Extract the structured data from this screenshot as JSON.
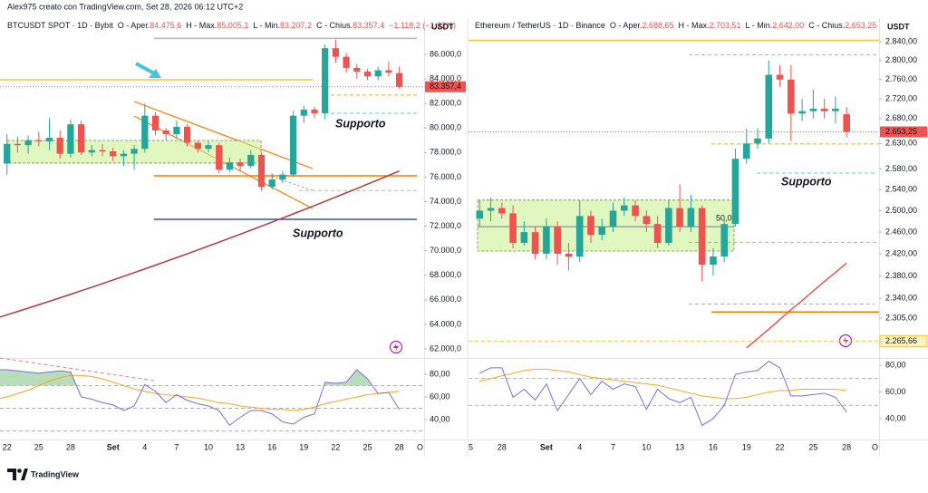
{
  "header": "Alex975 creato con TradingView.com, Set 28, 2026 06:12 UTC+2",
  "footer": "TradingView",
  "chart_data": [
    {
      "type": "candlestick",
      "title": "BTCUSDT SPOT · 1D · Bybit",
      "legend_items": [
        {
          "prefix": "O - Aper.",
          "value": "84.475,6"
        },
        {
          "prefix": "H - Max.",
          "value": "85.005,1"
        },
        {
          "prefix": "L - Min.",
          "value": "83.207,2"
        },
        {
          "prefix": "C - Chius.",
          "value": "83.357,4"
        }
      ],
      "change_label": "−1.118,2 (−1,32%)",
      "axis_unit": "USDT",
      "up_color": "#26a69a",
      "down_color": "#ef5350",
      "log": false,
      "categories": [
        null,
        "22",
        null,
        null,
        "25",
        null,
        null,
        "28",
        null,
        null,
        null,
        "Set",
        null,
        null,
        "4",
        null,
        null,
        "7",
        null,
        null,
        "10",
        null,
        null,
        "13",
        null,
        null,
        "16",
        null,
        null,
        "19",
        null,
        null,
        "22",
        null,
        null,
        "25",
        null,
        null,
        "28",
        null,
        null,
        "O"
      ],
      "open": [
        78300,
        77100,
        78700,
        78600,
        79000,
        78900,
        79200,
        77900,
        80300,
        78000,
        78200,
        78100,
        77700,
        77900,
        78300,
        81000,
        79800,
        79500,
        80100,
        78800,
        78300,
        78600,
        76600,
        77200,
        76900,
        77800,
        75200,
        75800,
        76200,
        81000,
        81500,
        81200,
        86500,
        85800,
        84900,
        84600,
        84200,
        84700,
        84475.6,
        null,
        null,
        null
      ],
      "high": [
        78900,
        79500,
        79300,
        79400,
        79700,
        80800,
        79800,
        80700,
        80600,
        78600,
        78700,
        78400,
        78200,
        78600,
        82000,
        81300,
        80000,
        80600,
        80300,
        79000,
        78900,
        78800,
        77600,
        77500,
        78200,
        78000,
        76300,
        76500,
        81400,
        81800,
        81700,
        86800,
        87200,
        86100,
        85200,
        84800,
        85000,
        85400,
        85005.1,
        null,
        null,
        null
      ],
      "low": [
        76800,
        76200,
        78000,
        77900,
        78500,
        78200,
        77500,
        77600,
        77800,
        77700,
        77700,
        77300,
        76900,
        76600,
        78000,
        79400,
        79000,
        79200,
        78500,
        78000,
        78000,
        76300,
        76400,
        76500,
        76700,
        74900,
        75000,
        75500,
        76000,
        80400,
        80800,
        80700,
        85300,
        84500,
        84000,
        83900,
        83900,
        84200,
        83207.2,
        null,
        null,
        null
      ],
      "close": [
        77100,
        78700,
        78600,
        79000,
        78900,
        79200,
        77900,
        80300,
        78000,
        78200,
        78100,
        77700,
        77900,
        78300,
        81000,
        79800,
        79500,
        80100,
        78800,
        78300,
        78600,
        76600,
        77200,
        76900,
        77800,
        75200,
        75800,
        76200,
        81000,
        81500,
        81200,
        86500,
        85800,
        84900,
        84600,
        84200,
        84700,
        84500,
        83357.4,
        null,
        null,
        null
      ],
      "last_price_label": "83.357,4",
      "ylim": [
        61260,
        88950
      ],
      "yticks": [
        {
          "value": 86000,
          "label": "86.000,0"
        },
        {
          "value": 84000,
          "label": "84.000,0"
        },
        {
          "value": 82000,
          "label": "82.000,0"
        },
        {
          "value": 80000,
          "label": "80.000,0"
        },
        {
          "value": 78000,
          "label": "78.000,0"
        },
        {
          "value": 76000,
          "label": "76.000,0"
        },
        {
          "value": 74000,
          "label": "74.000,0"
        },
        {
          "value": 72000,
          "label": "72.000,0"
        },
        {
          "value": 70000,
          "label": "70.000,0"
        },
        {
          "value": 68000,
          "label": "68.000,0"
        },
        {
          "value": 66000,
          "label": "66.000,0"
        },
        {
          "value": 64000,
          "label": "64.000,0"
        },
        {
          "value": 62000,
          "label": "62.000,0"
        }
      ],
      "moving_average": {
        "color": "#b23b3b",
        "values": [
          64500,
          64771,
          65045,
          65321,
          65599,
          65880,
          66163,
          66449,
          66737,
          67027,
          67320,
          67615,
          67913,
          68213,
          68515,
          68820,
          69127,
          69437,
          69749,
          70063,
          70380,
          70699,
          71021,
          71345,
          71671,
          72000,
          72331,
          72665,
          73001,
          73339,
          73680,
          74023,
          74369,
          74717,
          75067,
          75420,
          75775,
          76133,
          76493,
          null,
          null,
          null
        ]
      },
      "levels": [
        {
          "value": 83930,
          "color": "#f5c542",
          "dashed": false
        },
        {
          "value": 87300,
          "color": "#b2b5be",
          "dashed": false
        },
        {
          "value": 82680,
          "color": "#f5a623",
          "dashed": true
        },
        {
          "value": 81200,
          "color": "#4dd0e1",
          "dashed": true
        },
        {
          "value": 76100,
          "color": "#f57c00",
          "dashed": false
        },
        {
          "value": 74900,
          "color": "#b2b5be",
          "dashed": true
        },
        {
          "value": 72560,
          "color": "#3f51b5",
          "dashed": false
        }
      ],
      "box": {
        "low": 77140,
        "high": 78980,
        "color": "#c6f08c"
      },
      "annotations": [
        {
          "text": "Supporto",
          "color": "#4dc3d6"
        },
        {
          "text": "Supporto",
          "color": "#2f49b8"
        }
      ],
      "rsi": {
        "ylim": [
          22.4,
          94.4
        ],
        "yticks": [
          {
            "value": 80,
            "label": "80,00"
          },
          {
            "value": 60,
            "label": "60,00"
          },
          {
            "value": 40,
            "label": "40,00"
          }
        ],
        "levels": [
          70,
          50,
          30
        ],
        "fill_color": "#a5d6a7",
        "series": [
          {
            "color": "#7e6bd6",
            "values": [
              84,
              84,
              83,
              82,
              81,
              82,
              83,
              82,
              60,
              58,
              55,
              53,
              48,
              52,
              71,
              65,
              55,
              62,
              57,
              54,
              52,
              48,
              35,
              42,
              48,
              48,
              45,
              38,
              36,
              42,
              45,
              73,
              72,
              73,
              84,
              76,
              63,
              64,
              49,
              null,
              null,
              null
            ]
          },
          {
            "color": "#f5a623",
            "values": [
              58,
              60,
              63,
              66,
              70,
              74,
              77,
              79,
              79,
              78,
              76,
              73,
              70,
              67,
              65,
              63,
              62,
              61,
              60,
              59,
              57,
              55,
              54,
              52,
              51,
              50,
              49,
              49,
              48,
              49,
              51,
              54,
              56,
              58,
              60,
              62,
              63,
              64,
              65,
              null,
              null,
              null
            ]
          }
        ]
      }
    },
    {
      "type": "candlestick",
      "title": "Ethereum / TetherUS · 1D · Binance",
      "legend_items": [
        {
          "prefix": "O - Aper.",
          "value": "2.688,65"
        },
        {
          "prefix": "H - Max.",
          "value": "2.703,51"
        },
        {
          "prefix": "L - Min.",
          "value": "2.642,00"
        },
        {
          "prefix": "C - Chius.",
          "value": "2.653,25"
        }
      ],
      "axis_unit": "USDT",
      "up_color": "#26a69a",
      "down_color": "#ef5350",
      "log": true,
      "categories": [
        "25",
        null,
        null,
        "28",
        null,
        null,
        null,
        "Set",
        null,
        null,
        "4",
        null,
        null,
        "7",
        null,
        null,
        "10",
        null,
        null,
        "13",
        null,
        null,
        "16",
        null,
        null,
        "19",
        null,
        null,
        "22",
        null,
        null,
        "25",
        null,
        null,
        "28",
        null,
        null,
        "O"
      ],
      "open": [
        null,
        2485,
        2500,
        2505,
        2495,
        2440,
        2460,
        2420,
        2470,
        2420,
        2415,
        2490,
        2455,
        2470,
        2500,
        2510,
        2490,
        2475,
        2440,
        2505,
        2470,
        2505,
        2400,
        2415,
        2475,
        2600,
        2630,
        2640,
        2770,
        2760,
        2690,
        2695,
        2700,
        2695,
        2688.65,
        null,
        null,
        null
      ],
      "high": [
        null,
        2520,
        2525,
        2515,
        2510,
        2480,
        2470,
        2485,
        2480,
        2440,
        2520,
        2500,
        2485,
        2515,
        2525,
        2520,
        2500,
        2490,
        2520,
        2550,
        2530,
        2510,
        2430,
        2490,
        2620,
        2660,
        2660,
        2800,
        2790,
        2790,
        2720,
        2740,
        2720,
        2725,
        2703.51,
        null,
        null,
        null
      ],
      "low": [
        null,
        2470,
        2480,
        2485,
        2430,
        2435,
        2410,
        2410,
        2400,
        2390,
        2405,
        2440,
        2445,
        2460,
        2490,
        2480,
        2460,
        2430,
        2435,
        2460,
        2460,
        2370,
        2380,
        2405,
        2470,
        2590,
        2620,
        2630,
        2745,
        2635,
        2675,
        2680,
        2680,
        2670,
        2642,
        null,
        null,
        null
      ],
      "close": [
        null,
        2500,
        2505,
        2495,
        2440,
        2460,
        2420,
        2470,
        2420,
        2415,
        2490,
        2455,
        2470,
        2500,
        2510,
        2490,
        2475,
        2440,
        2505,
        2470,
        2505,
        2400,
        2415,
        2475,
        2600,
        2630,
        2640,
        2770,
        2760,
        2690,
        2695,
        2700,
        2695,
        2700,
        2653.25,
        null,
        null,
        null
      ],
      "last_price_label": "2.653,25",
      "ylim": [
        2237,
        2891
      ],
      "yticks": [
        {
          "value": 2840,
          "label": "2.840,00"
        },
        {
          "value": 2800,
          "label": "2.800,00"
        },
        {
          "value": 2760,
          "label": "2.760,00"
        },
        {
          "value": 2720,
          "label": "2.720,00"
        },
        {
          "value": 2680,
          "label": "2.680,00"
        },
        {
          "value": 2630,
          "label": "2.630,00"
        },
        {
          "value": 2580,
          "label": "2.580,00"
        },
        {
          "value": 2540,
          "label": "2.540,00"
        },
        {
          "value": 2500,
          "label": "2.500,00"
        },
        {
          "value": 2460,
          "label": "2.460,00"
        },
        {
          "value": 2420,
          "label": "2.420,00"
        },
        {
          "value": 2380,
          "label": "2.380,00"
        },
        {
          "value": 2340,
          "label": "2.340,00"
        },
        {
          "value": 2305,
          "label": "2.305,00"
        }
      ],
      "moving_average": {
        "color": "#e8574a",
        "values": [
          null,
          null,
          null,
          null,
          null,
          null,
          null,
          null,
          null,
          null,
          null,
          null,
          null,
          null,
          null,
          null,
          null,
          null,
          null,
          null,
          null,
          null,
          null,
          null,
          null,
          2254,
          2270,
          2286,
          2303,
          2320,
          2336,
          2353,
          2370,
          2386,
          2403,
          null,
          null,
          null
        ]
      },
      "levels": [
        {
          "value": 2843,
          "color": "#f5c542",
          "dashed": false
        },
        {
          "value": 2812,
          "color": "#b2b5be",
          "dashed": true
        },
        {
          "value": 2629,
          "color": "#f5a623",
          "dashed": true
        },
        {
          "value": 2572,
          "color": "#4dd0e1",
          "dashed": true
        },
        {
          "value": 2441,
          "color": "#f5a623",
          "dashed": true
        },
        {
          "value": 2330,
          "color": "#4dd0e1",
          "dashed": true
        },
        {
          "value": 2316,
          "color": "#f57c00",
          "dashed": false
        },
        {
          "value": 2265.66,
          "label": "2.265,66",
          "color": "#f5c542",
          "dashed": true
        }
      ],
      "box": {
        "low": 2425,
        "high": 2520,
        "mid": 2470,
        "label": "50,0%",
        "color": "#c6f08c"
      },
      "annotations": [
        {
          "text": "Supporto",
          "color": "#4dc3d6"
        }
      ],
      "rsi": {
        "ylim": [
          24.4,
          85.4
        ],
        "yticks": [
          {
            "value": 80,
            "label": "80,00"
          },
          {
            "value": 60,
            "label": "60,00"
          },
          {
            "value": 40,
            "label": "40,00"
          }
        ],
        "levels": [
          70,
          50
        ],
        "series": [
          {
            "color": "#7e6bd6",
            "values": [
              null,
              74,
              78,
              78,
              56,
              62,
              54,
              66,
              46,
              58,
              70,
              58,
              68,
              62,
              66,
              64,
              47,
              62,
              55,
              52,
              56,
              35,
              40,
              50,
              73,
              75,
              76,
              83,
              78,
              57,
              57,
              58,
              59,
              56,
              45,
              null,
              null,
              null
            ]
          },
          {
            "color": "#f5a623",
            "values": [
              null,
              68,
              70,
              72,
              74,
              76,
              77,
              77,
              76,
              75,
              73,
              71,
              70,
              69,
              68,
              67,
              66,
              65,
              63,
              61,
              59,
              57,
              56,
              55,
              55,
              56,
              58,
              60,
              61,
              61,
              62,
              62,
              62,
              62,
              61,
              null,
              null,
              null
            ]
          }
        ]
      }
    }
  ]
}
